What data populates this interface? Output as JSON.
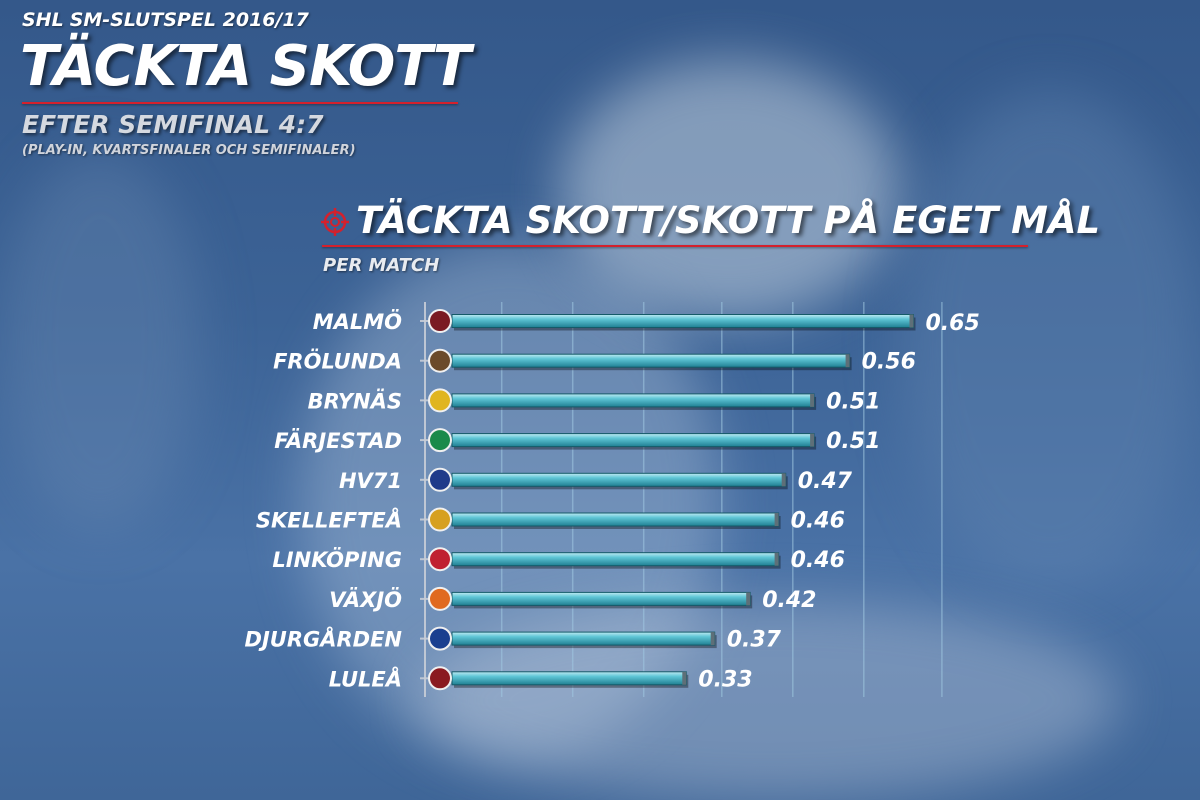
{
  "header": {
    "brand_logo": "SHL",
    "brand_text": "SM-SLUTSPEL 2016/17",
    "title": "TÄCKTA SKOTT",
    "subtitle": "EFTER SEMIFINAL 4:7",
    "note": "(PLAY-IN, KVARTSFINALER OCH SEMIFINALER)"
  },
  "chart_data": {
    "type": "bar",
    "orientation": "horizontal",
    "title": "TÄCKTA SKOTT/SKOTT PÅ EGET MÅL",
    "subtitle": "PER MATCH",
    "categories": [
      "MALMÖ",
      "FRÖLUNDA",
      "BRYNÄS",
      "FÄRJESTAD",
      "HV71",
      "SKELLEFTEÅ",
      "LINKÖPING",
      "VÄXJÖ",
      "DJURGÅRDEN",
      "LULEÅ"
    ],
    "values": [
      0.65,
      0.56,
      0.51,
      0.51,
      0.47,
      0.46,
      0.46,
      0.42,
      0.37,
      0.33
    ],
    "value_labels": [
      "0.65",
      "0.56",
      "0.51",
      "0.51",
      "0.47",
      "0.46",
      "0.46",
      "0.42",
      "0.37",
      "0.33"
    ],
    "xlim": [
      0,
      0.7
    ],
    "grid": true,
    "highlight_index": 0,
    "colors": {
      "bar": "#3fb3c6",
      "highlight_label": "#34e03a",
      "label": "#ffffff",
      "accent_red": "#d3212d"
    },
    "team_icons": [
      "malmo-redhawks-icon",
      "frolunda-indians-icon",
      "brynas-if-icon",
      "farjestad-bk-icon",
      "hv71-icon",
      "skelleftea-aik-icon",
      "linkoping-hc-icon",
      "vaxjo-lakers-icon",
      "djurgarden-if-icon",
      "lulea-hf-icon"
    ]
  }
}
